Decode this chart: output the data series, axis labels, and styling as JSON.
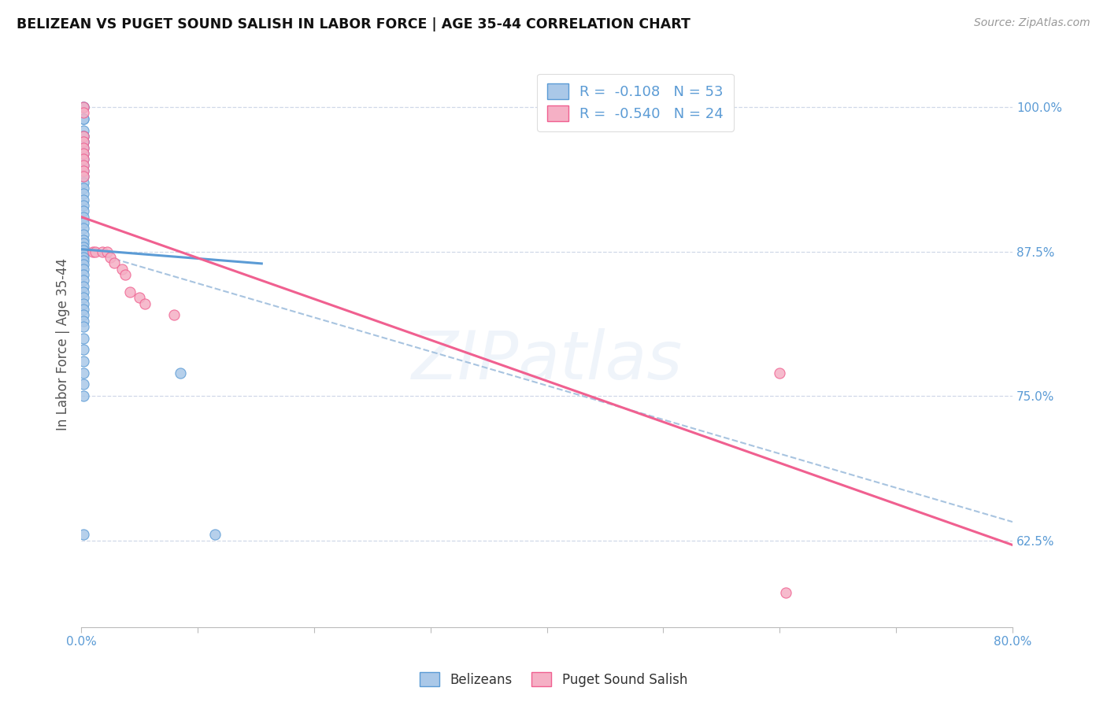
{
  "title": "BELIZEAN VS PUGET SOUND SALISH IN LABOR FORCE | AGE 35-44 CORRELATION CHART",
  "source": "Source: ZipAtlas.com",
  "ylabel": "In Labor Force | Age 35-44",
  "xlim": [
    0.0,
    0.8
  ],
  "ylim": [
    0.55,
    1.04
  ],
  "xtick_values": [
    0.0,
    0.1,
    0.2,
    0.3,
    0.4,
    0.5,
    0.6,
    0.7,
    0.8
  ],
  "xtick_show": [
    "0.0%",
    "",
    "",
    "",
    "",
    "",
    "",
    "",
    "80.0%"
  ],
  "ytick_values": [
    0.625,
    0.75,
    0.875,
    1.0
  ],
  "ytick_labels": [
    "62.5%",
    "75.0%",
    "87.5%",
    "100.0%"
  ],
  "belizean_color": "#aac8e8",
  "belizean_edge_color": "#5b9bd5",
  "puget_color": "#f5b0c5",
  "puget_edge_color": "#f06090",
  "belizean_line_color": "#5b9bd5",
  "puget_line_color": "#f06090",
  "ci_line_color": "#a8c4e0",
  "legend_R_belizean": "-0.108",
  "legend_N_belizean": "53",
  "legend_R_puget": "-0.540",
  "legend_N_puget": "24",
  "watermark": "ZIPatlas",
  "background_color": "#ffffff",
  "grid_color": "#d0d8e8",
  "title_color": "#111111",
  "source_color": "#999999",
  "tick_color": "#5b9bd5",
  "belizean_x": [
    0.002,
    0.002,
    0.002,
    0.002,
    0.002,
    0.002,
    0.002,
    0.002,
    0.002,
    0.002,
    0.002,
    0.002,
    0.002,
    0.002,
    0.002,
    0.002,
    0.002,
    0.002,
    0.002,
    0.002,
    0.002,
    0.002,
    0.002,
    0.002,
    0.002,
    0.002,
    0.002,
    0.002,
    0.002,
    0.002,
    0.002,
    0.002,
    0.002,
    0.002,
    0.002,
    0.002,
    0.002,
    0.002,
    0.002,
    0.002,
    0.002,
    0.002,
    0.002,
    0.002,
    0.002,
    0.002,
    0.002,
    0.002,
    0.002,
    0.002,
    0.002,
    0.085,
    0.115
  ],
  "belizean_y": [
    1.0,
    1.0,
    0.99,
    0.99,
    0.98,
    0.975,
    0.975,
    0.97,
    0.97,
    0.965,
    0.96,
    0.955,
    0.95,
    0.945,
    0.94,
    0.935,
    0.93,
    0.925,
    0.92,
    0.915,
    0.91,
    0.905,
    0.9,
    0.895,
    0.89,
    0.885,
    0.882,
    0.879,
    0.876,
    0.873,
    0.87,
    0.867,
    0.864,
    0.86,
    0.855,
    0.85,
    0.845,
    0.84,
    0.835,
    0.83,
    0.825,
    0.82,
    0.815,
    0.81,
    0.8,
    0.79,
    0.78,
    0.77,
    0.76,
    0.75,
    0.63,
    0.77,
    0.63
  ],
  "puget_x": [
    0.002,
    0.002,
    0.002,
    0.002,
    0.002,
    0.002,
    0.002,
    0.002,
    0.002,
    0.002,
    0.01,
    0.012,
    0.018,
    0.022,
    0.025,
    0.028,
    0.035,
    0.038,
    0.042,
    0.05,
    0.055,
    0.08,
    0.6,
    0.605
  ],
  "puget_y": [
    1.0,
    0.995,
    0.975,
    0.97,
    0.965,
    0.96,
    0.955,
    0.95,
    0.945,
    0.94,
    0.875,
    0.875,
    0.875,
    0.875,
    0.87,
    0.865,
    0.86,
    0.855,
    0.84,
    0.835,
    0.83,
    0.82,
    0.77,
    0.58
  ],
  "blue_line_x": [
    0.0,
    0.155
  ],
  "blue_line_y_intercept": 0.877,
  "blue_line_slope": -0.08,
  "pink_line_x": [
    0.0,
    0.8
  ],
  "pink_line_y_intercept": 0.905,
  "pink_line_slope": -0.355,
  "ci_line_y_intercept": 0.877,
  "ci_line_slope": -0.295
}
